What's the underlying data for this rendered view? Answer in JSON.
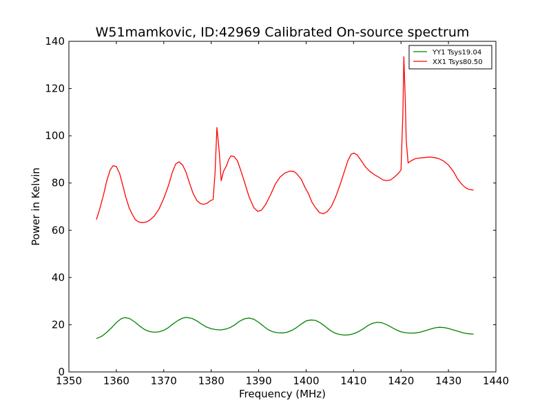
{
  "chart_data": {
    "type": "line",
    "title": "W51mamkovic, ID:42969 Calibrated On-source spectrum",
    "xlabel": "Frequency (MHz)",
    "ylabel": "Power in Kelvin",
    "xlim": [
      1350,
      1440
    ],
    "ylim": [
      0,
      140
    ],
    "xticks": [
      1350,
      1360,
      1370,
      1380,
      1390,
      1400,
      1410,
      1420,
      1430,
      1440
    ],
    "yticks": [
      0,
      20,
      40,
      60,
      80,
      100,
      120,
      140
    ],
    "grid": false,
    "legend_position": "top-right",
    "series": [
      {
        "name": "YY1 Tsys19.04",
        "color": "#008000",
        "points": [
          [
            1355.8,
            14.1
          ],
          [
            1357,
            15.2
          ],
          [
            1358,
            16.8
          ],
          [
            1359,
            18.7
          ],
          [
            1360,
            20.9
          ],
          [
            1361,
            22.5
          ],
          [
            1361.8,
            23.0
          ],
          [
            1362.8,
            22.6
          ],
          [
            1364,
            21.0
          ],
          [
            1365,
            19.3
          ],
          [
            1366,
            17.9
          ],
          [
            1367,
            17.1
          ],
          [
            1368,
            16.8
          ],
          [
            1369,
            17.0
          ],
          [
            1370,
            17.6
          ],
          [
            1371,
            18.8
          ],
          [
            1372,
            20.4
          ],
          [
            1373,
            21.8
          ],
          [
            1374,
            22.8
          ],
          [
            1374.8,
            23.1
          ],
          [
            1376,
            22.6
          ],
          [
            1377,
            21.6
          ],
          [
            1378,
            20.2
          ],
          [
            1379,
            19.0
          ],
          [
            1380,
            18.3
          ],
          [
            1381,
            17.9
          ],
          [
            1382,
            17.8
          ],
          [
            1383,
            18.1
          ],
          [
            1384,
            18.8
          ],
          [
            1385,
            20.0
          ],
          [
            1386,
            21.5
          ],
          [
            1387,
            22.5
          ],
          [
            1388,
            22.8
          ],
          [
            1389,
            22.3
          ],
          [
            1390,
            21.0
          ],
          [
            1391,
            19.4
          ],
          [
            1392,
            17.9
          ],
          [
            1393,
            17.0
          ],
          [
            1394,
            16.6
          ],
          [
            1395,
            16.5
          ],
          [
            1396,
            16.8
          ],
          [
            1397,
            17.6
          ],
          [
            1398,
            18.8
          ],
          [
            1399,
            20.3
          ],
          [
            1400,
            21.6
          ],
          [
            1401,
            22.0
          ],
          [
            1402,
            21.8
          ],
          [
            1403,
            20.8
          ],
          [
            1404,
            19.3
          ],
          [
            1405,
            17.7
          ],
          [
            1406,
            16.5
          ],
          [
            1407,
            15.9
          ],
          [
            1408,
            15.6
          ],
          [
            1409,
            15.7
          ],
          [
            1410,
            16.2
          ],
          [
            1411,
            17.0
          ],
          [
            1412,
            18.2
          ],
          [
            1413,
            19.6
          ],
          [
            1414,
            20.6
          ],
          [
            1415,
            21.0
          ],
          [
            1416,
            20.8
          ],
          [
            1417,
            20.0
          ],
          [
            1418,
            18.9
          ],
          [
            1419,
            17.8
          ],
          [
            1420,
            17.0
          ],
          [
            1421,
            16.6
          ],
          [
            1422,
            16.4
          ],
          [
            1423,
            16.5
          ],
          [
            1424,
            16.8
          ],
          [
            1425,
            17.4
          ],
          [
            1426,
            18.0
          ],
          [
            1427,
            18.6
          ],
          [
            1428,
            18.9
          ],
          [
            1429,
            18.8
          ],
          [
            1430,
            18.4
          ],
          [
            1431,
            17.8
          ],
          [
            1432,
            17.2
          ],
          [
            1433,
            16.6
          ],
          [
            1434,
            16.2
          ],
          [
            1435.3,
            16.0
          ]
        ]
      },
      {
        "name": "XX1 Tsys80.50",
        "color": "#ff0000",
        "points": [
          [
            1355.8,
            64.5
          ],
          [
            1356.5,
            69
          ],
          [
            1357.3,
            75
          ],
          [
            1358,
            81
          ],
          [
            1358.7,
            85.5
          ],
          [
            1359.3,
            87.3
          ],
          [
            1360,
            87.0
          ],
          [
            1360.7,
            84
          ],
          [
            1361.3,
            79.5
          ],
          [
            1362,
            74
          ],
          [
            1362.7,
            69.5
          ],
          [
            1363.3,
            67
          ],
          [
            1364,
            64.5
          ],
          [
            1364.7,
            63.5
          ],
          [
            1365.5,
            63.2
          ],
          [
            1366.3,
            63.5
          ],
          [
            1367,
            64.2
          ],
          [
            1368,
            66
          ],
          [
            1369,
            69
          ],
          [
            1370,
            73.5
          ],
          [
            1371,
            79
          ],
          [
            1371.8,
            84.5
          ],
          [
            1372.5,
            88
          ],
          [
            1373.2,
            89.0
          ],
          [
            1374,
            87.5
          ],
          [
            1374.7,
            84.5
          ],
          [
            1375.5,
            79.5
          ],
          [
            1376.2,
            75.5
          ],
          [
            1377,
            72.5
          ],
          [
            1377.8,
            71.2
          ],
          [
            1378.5,
            71.0
          ],
          [
            1379.2,
            71.5
          ],
          [
            1379.8,
            72.5
          ],
          [
            1380.4,
            73.0
          ],
          [
            1380.8,
            84
          ],
          [
            1381.2,
            103.5
          ],
          [
            1381.7,
            93
          ],
          [
            1382.1,
            81
          ],
          [
            1382.6,
            85
          ],
          [
            1383.2,
            87.2
          ],
          [
            1383.7,
            90.0
          ],
          [
            1384.2,
            91.5
          ],
          [
            1384.8,
            91.2
          ],
          [
            1385.5,
            89.5
          ],
          [
            1386.2,
            85.5
          ],
          [
            1387,
            80.5
          ],
          [
            1388,
            74
          ],
          [
            1389,
            69.5
          ],
          [
            1389.8,
            68.0
          ],
          [
            1390.6,
            68.5
          ],
          [
            1391.5,
            71
          ],
          [
            1392.5,
            75
          ],
          [
            1393.5,
            79.5
          ],
          [
            1394.5,
            82.5
          ],
          [
            1395.5,
            84.2
          ],
          [
            1396.5,
            85.0
          ],
          [
            1397.3,
            85.0
          ],
          [
            1398,
            84.0
          ],
          [
            1399,
            81.5
          ],
          [
            1399.8,
            78
          ],
          [
            1400.5,
            75.5
          ],
          [
            1401.2,
            72
          ],
          [
            1402,
            69.5
          ],
          [
            1402.8,
            67.5
          ],
          [
            1403.6,
            67.0
          ],
          [
            1404.4,
            67.8
          ],
          [
            1405.3,
            70
          ],
          [
            1406.2,
            74
          ],
          [
            1407.2,
            79.5
          ],
          [
            1408,
            84.5
          ],
          [
            1408.8,
            89.5
          ],
          [
            1409.5,
            92.2
          ],
          [
            1410.1,
            92.7
          ],
          [
            1410.8,
            91.8
          ],
          [
            1411.6,
            89.5
          ],
          [
            1412.5,
            86.8
          ],
          [
            1413.4,
            85.0
          ],
          [
            1414.4,
            83.5
          ],
          [
            1415.3,
            82.5
          ],
          [
            1416.2,
            81.3
          ],
          [
            1417,
            81.0
          ],
          [
            1417.8,
            81.3
          ],
          [
            1418.6,
            82.5
          ],
          [
            1419.4,
            84
          ],
          [
            1420.0,
            85.5
          ],
          [
            1420.4,
            110
          ],
          [
            1420.6,
            133.5
          ],
          [
            1420.9,
            115
          ],
          [
            1421.1,
            98
          ],
          [
            1421.5,
            88.5
          ],
          [
            1422.2,
            89.5
          ],
          [
            1423,
            90.3
          ],
          [
            1424,
            90.6
          ],
          [
            1425,
            90.8
          ],
          [
            1426,
            91.0
          ],
          [
            1427,
            90.8
          ],
          [
            1428,
            90.3
          ],
          [
            1429,
            89.3
          ],
          [
            1430,
            87.6
          ],
          [
            1431,
            85.0
          ],
          [
            1432,
            81.5
          ],
          [
            1432.8,
            79.5
          ],
          [
            1433.6,
            78.0
          ],
          [
            1434.3,
            77.3
          ],
          [
            1435.3,
            77.0
          ]
        ]
      }
    ]
  }
}
